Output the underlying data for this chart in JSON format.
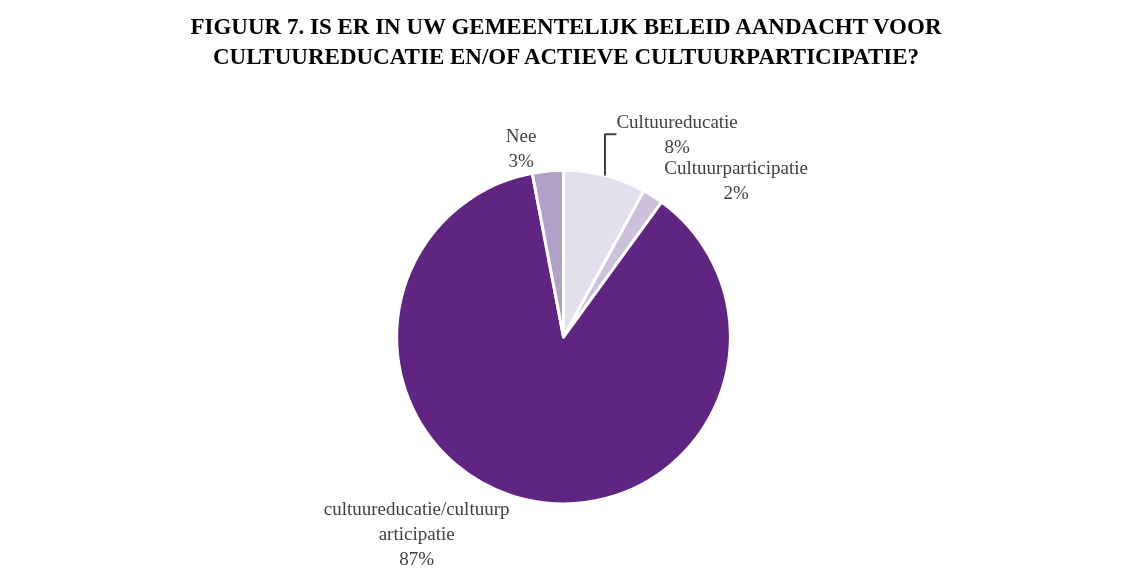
{
  "chart_data": {
    "type": "pie",
    "title": "FIGUUR 7. IS ER IN UW GEMEENTELIJK BELEID AANDACHT VOOR CULTUUREDUCATIE EN/OF ACTIEVE CULTUURPARTICIPATIE?",
    "categories": [
      "Cultuureducatie",
      "Cultuurparticipatie",
      "cultuureducatie/cultuurparticipatie",
      "Nee"
    ],
    "values": [
      8,
      2,
      87,
      3
    ],
    "value_labels": [
      "8%",
      "2%",
      "87%",
      "3%"
    ],
    "colors": [
      "#e4dfec",
      "#ccc0da",
      "#5f2581",
      "#b1a0c7"
    ],
    "legend": false
  }
}
